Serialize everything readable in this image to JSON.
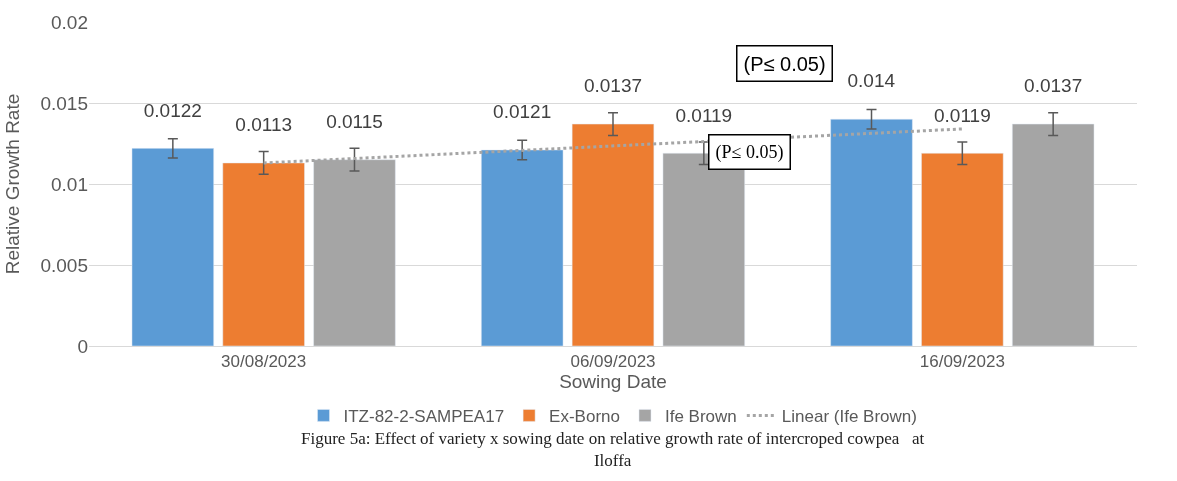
{
  "chart_data": {
    "type": "bar",
    "xlabel": "Sowing Date",
    "ylabel": "Relative Growth Rate",
    "categories": [
      "30/08/2023",
      "06/09/2023",
      "16/09/2023"
    ],
    "series": [
      {
        "name": "ITZ-82-2-SAMPEA17",
        "color": "#5b9bd5",
        "values": [
          0.0122,
          0.0121,
          0.014
        ],
        "value_labels": [
          "0.0122",
          "0.0121",
          "0.014"
        ],
        "errors": [
          0.0006,
          0.0006,
          0.0006
        ]
      },
      {
        "name": "Ex-Borno",
        "color": "#ed7d31",
        "values": [
          0.0113,
          0.0137,
          0.0119
        ],
        "value_labels": [
          "0.0113",
          "0.0137",
          "0.0119"
        ],
        "errors": [
          0.0007,
          0.0007,
          0.0007
        ]
      },
      {
        "name": "Ife Brown",
        "color": "#a5a5a5",
        "values": [
          0.0115,
          0.0119,
          0.0137
        ],
        "value_labels": [
          "0.0115",
          "0.0119",
          "0.0137"
        ],
        "errors": [
          0.0007,
          0.0007,
          0.0007
        ]
      },
      {
        "name": "Linear (Ife Brown)",
        "type": "line",
        "line_style": "dotted",
        "marker": "none",
        "color": "#a5a5a5",
        "x": [
          "30/08/2023",
          "16/09/2023"
        ],
        "values": [
          0.0113,
          0.0134
        ]
      }
    ],
    "ylim": [
      0,
      0.02
    ],
    "yticks": [
      0,
      0.005,
      0.01,
      0.015,
      0.02
    ],
    "grid": "y",
    "legend": "bottom",
    "annotations": [
      "(P≤ 0.05)",
      "(P≤ 0.05)",
      "Figure 5a: Effect of variety x sowing date on relative growth rate of intercroped cowpea   at\nIloffa"
    ]
  }
}
